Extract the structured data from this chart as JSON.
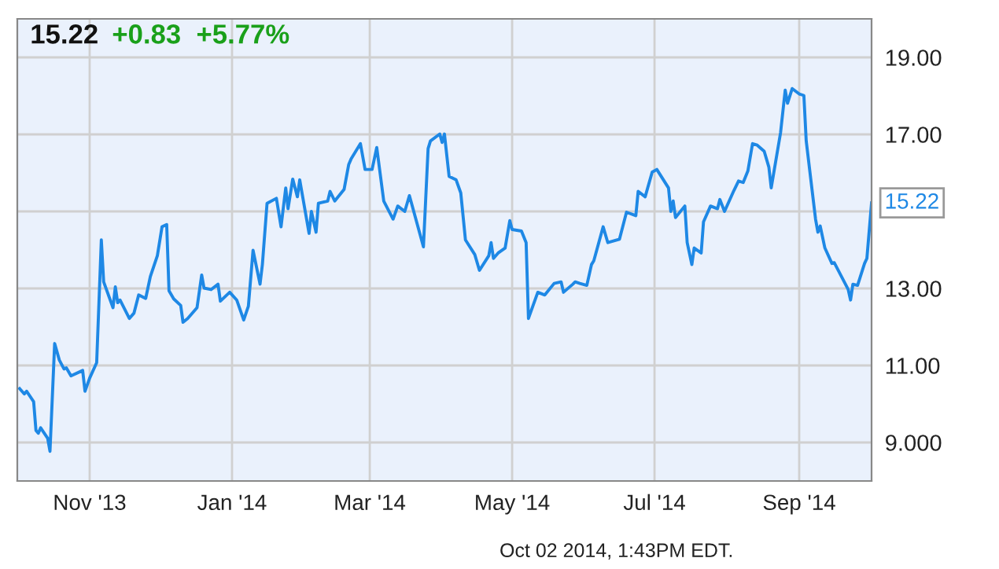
{
  "chart_data": {
    "type": "line",
    "title": "15.22",
    "subtitle": "+0.83  +5.77%",
    "x": [
      "2013-10-02",
      "2013-10-04",
      "2013-10-05",
      "2013-10-08",
      "2013-10-09",
      "2013-10-10",
      "2013-10-11",
      "2013-10-14",
      "2013-10-15",
      "2013-10-17",
      "2013-10-19",
      "2013-10-21",
      "2013-10-22",
      "2013-10-24",
      "2013-10-29",
      "2013-10-30",
      "2013-11-01",
      "2013-11-04",
      "2013-11-06",
      "2013-11-07",
      "2013-11-11",
      "2013-11-12",
      "2013-11-13",
      "2013-11-14",
      "2013-11-18",
      "2013-11-20",
      "2013-11-22",
      "2013-11-25",
      "2013-11-27",
      "2013-11-30",
      "2013-12-02",
      "2013-12-04",
      "2013-12-05",
      "2013-12-07",
      "2013-12-10",
      "2013-12-11",
      "2013-12-13",
      "2013-12-17",
      "2013-12-19",
      "2013-12-20",
      "2013-12-23",
      "2013-12-26",
      "2013-12-27",
      "2013-12-31",
      "2014-01-03",
      "2014-01-06",
      "2014-01-08",
      "2014-01-10",
      "2014-01-13",
      "2014-01-14",
      "2014-01-16",
      "2014-01-20",
      "2014-01-22",
      "2014-01-24",
      "2014-01-25",
      "2014-01-27",
      "2014-01-29",
      "2014-01-30",
      "2014-02-03",
      "2014-02-04",
      "2014-02-06",
      "2014-02-07",
      "2014-02-11",
      "2014-02-12",
      "2014-02-14",
      "2014-02-18",
      "2014-02-20",
      "2014-02-21",
      "2014-02-25",
      "2014-02-27",
      "2014-03-02",
      "2014-03-04",
      "2014-03-07",
      "2014-03-11",
      "2014-03-13",
      "2014-03-16",
      "2014-03-18",
      "2014-03-24",
      "2014-03-26",
      "2014-03-27",
      "2014-03-31",
      "2014-04-01",
      "2014-04-02",
      "2014-04-04",
      "2014-04-07",
      "2014-04-09",
      "2014-04-11",
      "2014-04-15",
      "2014-04-17",
      "2014-04-21",
      "2014-04-22",
      "2014-04-23",
      "2014-04-25",
      "2014-04-28",
      "2014-04-30",
      "2014-05-01",
      "2014-05-05",
      "2014-05-07",
      "2014-05-08",
      "2014-05-12",
      "2014-05-15",
      "2014-05-19",
      "2014-05-22",
      "2014-05-23",
      "2014-05-27",
      "2014-05-28",
      "2014-05-30",
      "2014-06-02",
      "2014-06-04",
      "2014-06-05",
      "2014-06-09",
      "2014-06-11",
      "2014-06-16",
      "2014-06-19",
      "2014-06-23",
      "2014-06-24",
      "2014-06-27",
      "2014-06-30",
      "2014-07-02",
      "2014-07-07",
      "2014-07-08",
      "2014-07-09",
      "2014-07-10",
      "2014-07-14",
      "2014-07-15",
      "2014-07-17",
      "2014-07-18",
      "2014-07-21",
      "2014-07-22",
      "2014-07-25",
      "2014-07-28",
      "2014-07-29",
      "2014-07-31",
      "2014-08-04",
      "2014-08-06",
      "2014-08-08",
      "2014-08-10",
      "2014-08-12",
      "2014-08-14",
      "2014-08-17",
      "2014-08-19",
      "2014-08-20",
      "2014-08-24",
      "2014-08-26",
      "2014-08-27",
      "2014-08-29",
      "2014-09-01",
      "2014-09-03",
      "2014-09-04",
      "2014-09-08",
      "2014-09-09",
      "2014-09-10",
      "2014-09-12",
      "2014-09-15",
      "2014-09-16",
      "2014-09-22",
      "2014-09-23",
      "2014-09-24",
      "2014-09-26",
      "2014-09-29",
      "2014-09-30",
      "2014-10-02"
    ],
    "series": [
      {
        "color": "#1e88e5",
        "values": [
          10.4,
          10.26,
          10.33,
          10.06,
          9.31,
          9.24,
          9.38,
          9.11,
          8.77,
          11.57,
          11.14,
          10.91,
          10.94,
          10.73,
          10.87,
          10.33,
          10.67,
          11.07,
          14.26,
          13.17,
          12.5,
          13.04,
          12.63,
          12.7,
          12.22,
          12.36,
          12.83,
          12.74,
          13.31,
          13.85,
          14.6,
          14.66,
          12.94,
          12.73,
          12.56,
          12.12,
          12.22,
          12.5,
          13.35,
          13.01,
          12.97,
          13.11,
          12.67,
          12.9,
          12.7,
          12.18,
          12.54,
          13.99,
          13.11,
          13.62,
          15.21,
          15.34,
          14.6,
          15.61,
          15.07,
          15.84,
          15.38,
          15.82,
          14.43,
          15.0,
          14.46,
          15.21,
          15.27,
          15.52,
          15.27,
          15.57,
          16.22,
          16.36,
          16.76,
          16.09,
          16.09,
          16.66,
          15.27,
          14.8,
          15.14,
          15.0,
          15.41,
          14.08,
          16.63,
          16.83,
          17.01,
          16.79,
          17.01,
          15.91,
          15.82,
          15.48,
          14.26,
          13.88,
          13.47,
          13.85,
          14.19,
          13.78,
          13.92,
          14.05,
          14.76,
          14.53,
          14.49,
          14.19,
          12.22,
          12.9,
          12.83,
          13.13,
          13.17,
          12.9,
          13.11,
          13.17,
          13.13,
          13.08,
          13.62,
          13.72,
          14.6,
          14.19,
          14.28,
          14.98,
          14.89,
          15.52,
          15.38,
          16.02,
          16.09,
          15.61,
          15.0,
          15.27,
          14.84,
          15.14,
          14.19,
          13.62,
          14.05,
          13.92,
          14.73,
          15.14,
          15.07,
          15.31,
          15.0,
          15.54,
          15.79,
          15.75,
          16.05,
          16.76,
          16.72,
          16.56,
          16.15,
          15.61,
          17.04,
          18.15,
          17.81,
          18.19,
          18.05,
          18.01,
          16.83,
          14.8,
          14.46,
          14.62,
          14.05,
          13.65,
          13.67,
          12.97,
          12.7,
          13.11,
          13.08,
          13.65,
          13.78,
          15.22
        ]
      }
    ],
    "xlim": [
      "2013-10-01",
      "2014-10-02"
    ],
    "xticks": [
      {
        "value": "2013-11-01",
        "label": "Nov '13"
      },
      {
        "value": "2014-01-01",
        "label": "Jan '14"
      },
      {
        "value": "2014-03-01",
        "label": "Mar '14"
      },
      {
        "value": "2014-05-01",
        "label": "May '14"
      },
      {
        "value": "2014-07-01",
        "label": "Jul '14"
      },
      {
        "value": "2014-09-01",
        "label": "Sep '14"
      }
    ],
    "ylim": [
      8,
      20
    ],
    "yticks": [
      {
        "value": 9,
        "label": "9.000"
      },
      {
        "value": 11,
        "label": "11.00"
      },
      {
        "value": 13,
        "label": "13.00"
      },
      {
        "value": 15,
        "label": null
      },
      {
        "value": 17,
        "label": "17.00"
      },
      {
        "value": 19,
        "label": "19.00"
      }
    ],
    "grid": true,
    "legend": false,
    "marker": "none",
    "line_style": "solid",
    "annotations": [
      {
        "text": "15.22",
        "x": "2014-10-02",
        "y": 15.22
      },
      "Oct 02 2014, 1:43PM EDT."
    ]
  }
}
